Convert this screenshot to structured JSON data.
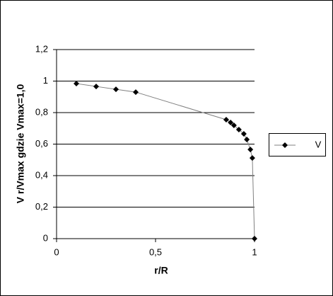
{
  "chart_data": {
    "type": "scatter",
    "x_label": "r/R",
    "y_label": "V  r/Vmax gdzie Vmax=1,0",
    "series": [
      {
        "name": "V",
        "color": "#000000",
        "x": [
          0.1,
          0.2,
          0.3,
          0.4,
          0.857,
          0.879,
          0.896,
          0.921,
          0.946,
          0.961,
          0.979,
          0.989,
          1.0
        ],
        "values": [
          0.984,
          0.966,
          0.948,
          0.93,
          0.755,
          0.737,
          0.719,
          0.692,
          0.665,
          0.629,
          0.566,
          0.512,
          0
        ]
      }
    ],
    "xlim": [
      0,
      1
    ],
    "xticks": [
      0,
      {
        "value": 0.5,
        "label": "0,5"
      },
      1
    ],
    "ylim": [
      0,
      1.2
    ],
    "yticks": [
      0,
      {
        "value": 0.2,
        "label": "0,2"
      },
      {
        "value": 0.4,
        "label": "0,4"
      },
      {
        "value": 0.6,
        "label": "0,6"
      },
      {
        "value": 0.8,
        "label": "0,8"
      },
      1,
      {
        "value": 1.2,
        "label": "1,2"
      }
    ],
    "grid": true,
    "legend": "right"
  }
}
